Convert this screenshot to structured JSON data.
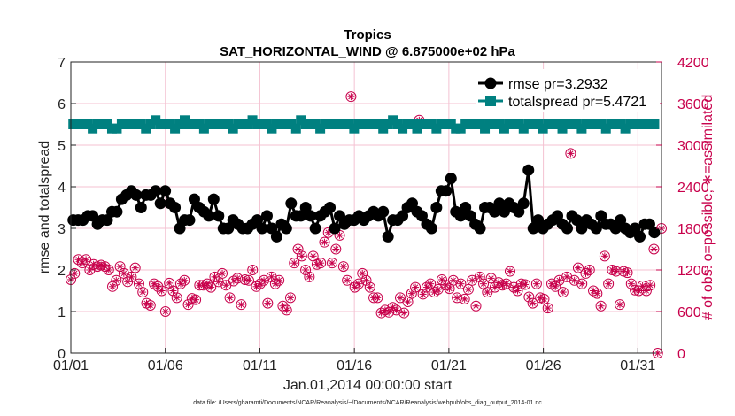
{
  "chart_data": {
    "type": "line",
    "title": "Tropics",
    "subtitle": "SAT_HORIZONTAL_WIND @ 6.875000e+02 hPa",
    "xlabel": "Jan.01,2014 00:00:00 start",
    "ylabel": "rmse and totalspread",
    "ylabel_right": "# of obs: o=possible; ∗=assimilated",
    "footnote": "data file: /Users/gharamti/Documents/NCAR/Reanalysis/~/Documents/NCAR/Reanalysis/webpub/obs_diag_output_2014-01.nc",
    "xlim": [
      0,
      31.25
    ],
    "ylim": [
      0,
      7
    ],
    "ylim_right": [
      0,
      4200
    ],
    "x_ticks": [
      0,
      5,
      10,
      15,
      20,
      25,
      30
    ],
    "x_tick_labels": [
      "01/01",
      "01/06",
      "01/11",
      "01/16",
      "01/21",
      "01/26",
      "01/31"
    ],
    "y_ticks": [
      "0",
      "1",
      "2",
      "3",
      "4",
      "5",
      "6",
      "7"
    ],
    "y_ticks_right": [
      "0",
      "600",
      "1200",
      "1800",
      "2400",
      "3000",
      "3600",
      "4200"
    ],
    "legend": [
      "rmse pr=3.2932",
      "totalspread pr=5.4721"
    ],
    "legend_position": "top-right",
    "colors": {
      "rmse": "#000000",
      "totalspread": "#008080",
      "obs": "#c8004b",
      "grid": "#f4c2d2"
    },
    "series": [
      {
        "name": "rmse",
        "values": [
          3.2,
          3.2,
          3.2,
          3.3,
          3.3,
          3.1,
          3.2,
          3.2,
          3.4,
          3.4,
          3.7,
          3.8,
          3.9,
          3.8,
          3.5,
          3.8,
          3.8,
          3.9,
          3.6,
          3.9,
          3.6,
          3.5,
          3.0,
          3.2,
          3.2,
          3.7,
          3.5,
          3.4,
          3.3,
          3.7,
          3.3,
          3.0,
          3.0,
          3.2,
          3.1,
          3.0,
          3.0,
          3.1,
          3.2,
          3.0,
          3.3,
          3.0,
          2.8,
          3.1,
          3.0,
          3.6,
          3.3,
          3.3,
          3.5,
          3.3,
          3.0,
          3.3,
          3.4,
          3.5,
          3.0,
          3.3,
          3.1,
          3.2,
          3.2,
          3.3,
          3.2,
          3.3,
          3.4,
          3.3,
          3.4,
          2.8,
          3.2,
          3.2,
          3.3,
          3.5,
          3.6,
          3.4,
          3.3,
          3.1,
          3.0,
          3.5,
          3.9,
          3.9,
          4.2,
          3.4,
          3.3,
          3.5,
          3.3,
          3.1,
          3.0,
          3.5,
          3.5,
          3.4,
          3.6,
          3.4,
          3.6,
          3.5,
          3.4,
          3.6,
          4.4,
          3.0,
          3.2,
          3.0,
          3.1,
          3.2,
          3.3,
          3.1,
          3.0,
          3.3,
          3.2,
          3.0,
          3.2,
          3.1,
          3.0,
          3.3,
          3.1,
          3.1,
          3.0,
          3.2,
          3.0,
          2.9,
          3.0,
          2.8,
          3.1,
          3.1,
          2.9
        ]
      },
      {
        "name": "totalspread",
        "values": [
          5.5,
          5.5,
          5.5,
          5.5,
          5.4,
          5.5,
          5.5,
          5.5,
          5.4,
          5.4,
          5.5,
          5.5,
          5.5,
          5.5,
          5.5,
          5.4,
          5.5,
          5.6,
          5.5,
          5.5,
          5.5,
          5.4,
          5.5,
          5.6,
          5.5,
          5.5,
          5.5,
          5.4,
          5.5,
          5.5,
          5.5,
          5.5,
          5.5,
          5.4,
          5.5,
          5.5,
          5.5,
          5.6,
          5.5,
          5.5,
          5.5,
          5.4,
          5.5,
          5.5,
          5.5,
          5.5,
          5.4,
          5.6,
          5.5,
          5.5,
          5.5,
          5.4,
          5.5,
          5.5,
          5.5,
          5.5,
          5.5,
          5.5,
          5.4,
          5.5,
          5.5,
          5.5,
          5.5,
          5.5,
          5.4,
          5.5,
          5.6,
          5.5,
          5.4,
          5.5,
          5.5,
          5.4,
          5.5,
          5.5,
          5.5,
          5.4,
          5.5,
          5.5,
          5.5,
          5.4,
          5.4,
          5.5,
          5.5,
          5.5,
          5.5,
          5.4,
          5.5,
          5.5,
          5.5,
          5.4,
          5.5,
          5.5,
          5.5,
          5.4,
          5.5,
          5.5,
          5.5,
          5.4,
          5.5,
          5.5,
          5.5,
          5.4,
          5.5,
          5.5,
          5.5,
          5.4,
          5.5,
          5.5,
          5.5,
          5.5,
          5.4,
          5.5,
          5.5,
          5.5,
          5.4,
          5.5,
          5.5,
          5.5,
          5.5,
          5.5,
          5.5
        ]
      }
    ],
    "obs_counts": {
      "name": "# of obs",
      "values": [
        1060,
        1150,
        1350,
        1300,
        1350,
        1200,
        1280,
        1250,
        1270,
        1250,
        1200,
        960,
        1050,
        1250,
        1150,
        1030,
        1100,
        1230,
        1000,
        880,
        720,
        690,
        1000,
        960,
        900,
        600,
        1010,
        900,
        800,
        1000,
        1050,
        700,
        790,
        770,
        980,
        980,
        1000,
        950,
        1100,
        1030,
        1150,
        980,
        800,
        1040,
        1080,
        700,
        1060,
        1050,
        1200,
        960,
        1000,
        1050,
        720,
        1100,
        1000,
        1050,
        680,
        620,
        800,
        1300,
        1500,
        1400,
        1200,
        1100,
        1400,
        1280,
        1300,
        1600,
        1740,
        1300,
        1500,
        1700,
        1250,
        1050,
        3700,
        950,
        1000,
        1150,
        1050,
        950,
        800,
        800,
        580,
        620,
        590,
        660,
        620,
        800,
        580,
        740,
        860,
        950,
        3360,
        850,
        950,
        1000,
        880,
        920,
        1060,
        980,
        930,
        1050,
        800,
        1000,
        780,
        920,
        1050,
        680,
        1100,
        1000,
        880,
        1080,
        950,
        1020,
        980,
        1000,
        1180,
        950,
        900,
        1000,
        990,
        810,
        720,
        1000,
        800,
        780,
        650,
        1000,
        960,
        1050,
        880,
        1100,
        2880,
        1050,
        1230,
        1000,
        1150,
        1200,
        900,
        860,
        680,
        1400,
        1000,
        1200,
        1180,
        700,
        1180,
        1160,
        1000,
        910,
        900,
        970,
        900,
        980,
        1500,
        0,
        1800
      ]
    }
  }
}
